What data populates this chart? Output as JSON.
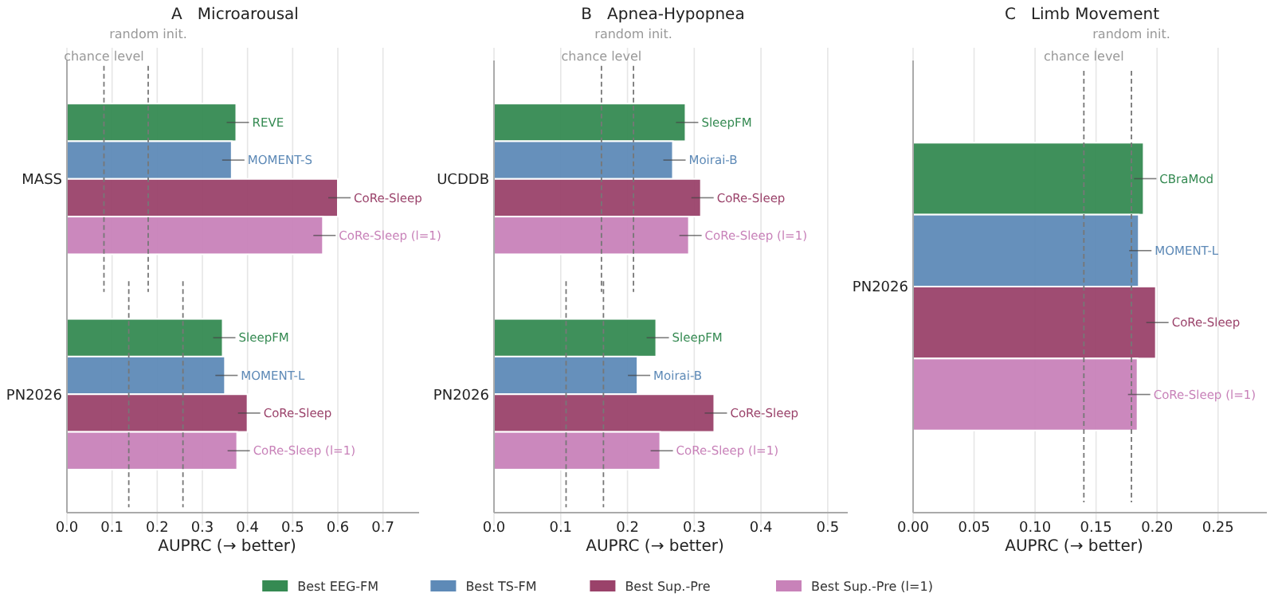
{
  "chart_data": [
    {
      "type": "bar",
      "orientation": "horizontal",
      "title": "A   Microarousal",
      "xlabel": "AUPRC (→ better)",
      "categories": [
        "MASS",
        "PN2026"
      ],
      "xlim": [
        0,
        0.78
      ],
      "xticks": [
        {
          "value": 0,
          "label": "0.0"
        },
        0.1,
        0.2,
        0.3,
        0.4,
        0.5,
        0.6,
        0.7
      ],
      "grid": "x",
      "legend": "bottom",
      "series": [
        {
          "name": "Best EEG-FM",
          "color": "#358a52",
          "values": [
            0.375,
            0.345
          ]
        },
        {
          "name": "Best TS-FM",
          "color": "#5e8ab7",
          "values": [
            0.365,
            0.35
          ]
        },
        {
          "name": "Best Sup.-Pre",
          "color": "#9a426a",
          "values": [
            0.6,
            0.4
          ]
        },
        {
          "name": "Best Sup.-Pre (l=1)",
          "color": "#c882b9",
          "values": [
            0.567,
            0.377
          ]
        }
      ],
      "annotations": [
        "REVE",
        "MOMENT-S",
        "CoRe-Sleep",
        "CoRe-Sleep (l=1)",
        "SleepFM",
        "MOMENT-L",
        "CoRe-Sleep",
        "CoRe-Sleep (l=1)"
      ],
      "ref_lines": [
        {
          "axis": "x",
          "value": 0.082,
          "label": "chance level",
          "line_style": "dashed"
        },
        {
          "axis": "x",
          "value": 0.18,
          "label": "random init.",
          "line_style": "dashed"
        },
        {
          "axis": "x",
          "value": 0.137,
          "label": null,
          "line_style": "dashed"
        },
        {
          "axis": "x",
          "value": 0.257,
          "label": null,
          "line_style": "dashed"
        }
      ]
    },
    {
      "type": "bar",
      "orientation": "horizontal",
      "title": "B   Apnea-Hypopnea",
      "xlabel": "AUPRC (→ better)",
      "categories": [
        "UCDDB",
        "PN2026"
      ],
      "xlim": [
        0,
        0.53
      ],
      "xticks": [
        {
          "value": 0,
          "label": "0.0"
        },
        0.1,
        0.2,
        0.3,
        0.4,
        0.5
      ],
      "grid": "x",
      "series": [
        {
          "color": "#358a52",
          "values": [
            0.287,
            0.243
          ]
        },
        {
          "color": "#5e8ab7",
          "values": [
            0.268,
            0.215
          ]
        },
        {
          "color": "#9a426a",
          "values": [
            0.31,
            0.33
          ]
        },
        {
          "color": "#c882b9",
          "values": [
            0.292,
            0.249
          ]
        }
      ],
      "annotations": [
        "SleepFM",
        "Moirai-B",
        "CoRe-Sleep",
        "CoRe-Sleep (l=1)",
        "SleepFM",
        "Moirai-B",
        "CoRe-Sleep",
        "CoRe-Sleep (l=1)"
      ],
      "ref_lines": [
        {
          "axis": "x",
          "value": 0.161,
          "label": "chance level",
          "line_style": "dashed"
        },
        {
          "axis": "x",
          "value": 0.209,
          "label": "random init.",
          "line_style": "dashed"
        },
        {
          "axis": "x",
          "value": 0.108,
          "label": null,
          "line_style": "dashed"
        },
        {
          "axis": "x",
          "value": 0.164,
          "label": null,
          "line_style": "dashed"
        }
      ]
    },
    {
      "type": "bar",
      "orientation": "horizontal",
      "title": "C   Limb Movement",
      "xlabel": "AUPRC (→ better)",
      "categories": [
        "PN2026"
      ],
      "xlim": [
        0,
        0.29
      ],
      "xticks": [
        {
          "value": 0,
          "label": "0.00"
        },
        {
          "value": 0.05,
          "label": "0.05"
        },
        {
          "value": 0.1,
          "label": "0.10"
        },
        {
          "value": 0.15,
          "label": "0.15"
        },
        {
          "value": 0.2,
          "label": "0.20"
        },
        {
          "value": 0.25,
          "label": "0.25"
        }
      ],
      "grid": "x",
      "series": [
        {
          "color": "#358a52",
          "values": [
            0.189
          ]
        },
        {
          "color": "#5e8ab7",
          "values": [
            0.185
          ]
        },
        {
          "color": "#9a426a",
          "values": [
            0.199
          ]
        },
        {
          "color": "#c882b9",
          "values": [
            0.184
          ]
        }
      ],
      "annotations": [
        "CBraMod",
        "MOMENT-L",
        "CoRe-Sleep",
        "CoRe-Sleep (l=1)"
      ],
      "ref_lines": [
        {
          "axis": "x",
          "value": 0.14,
          "label": "chance level",
          "line_style": "dashed"
        },
        {
          "axis": "x",
          "value": 0.179,
          "label": "random init.",
          "line_style": "dashed"
        }
      ]
    }
  ]
}
